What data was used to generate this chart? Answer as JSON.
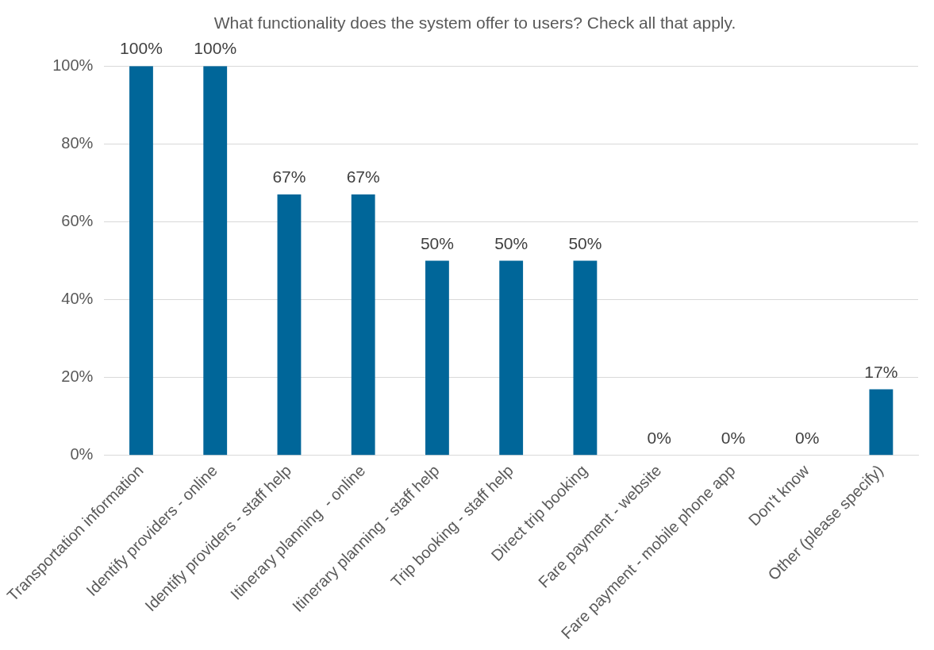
{
  "chart_data": {
    "type": "bar",
    "title": "What functionality does the system offer to users? Check all that apply.",
    "categories": [
      "Transportation information",
      "Identify providers - online",
      "Identify providers - staff help",
      "Itinerary planning  - online",
      "Itinerary planning - staff help",
      "Trip booking - staff help",
      "Direct trip booking",
      "Fare payment - website",
      "Fare payment - mobile phone app",
      "Don't know",
      "Other (please specify)"
    ],
    "values": [
      100,
      100,
      67,
      67,
      50,
      50,
      50,
      0,
      0,
      0,
      17
    ],
    "value_labels": [
      "100%",
      "100%",
      "67%",
      "67%",
      "50%",
      "50%",
      "50%",
      "0%",
      "0%",
      "0%",
      "17%"
    ],
    "color": "#006699",
    "ylim": [
      0,
      100
    ],
    "yticks": [
      {
        "value": 0,
        "label": "0%"
      },
      {
        "value": 20,
        "label": "20%"
      },
      {
        "value": 40,
        "label": "40%"
      },
      {
        "value": 60,
        "label": "60%"
      },
      {
        "value": 80,
        "label": "80%"
      },
      {
        "value": 100,
        "label": "100%"
      }
    ],
    "grid": "y"
  }
}
